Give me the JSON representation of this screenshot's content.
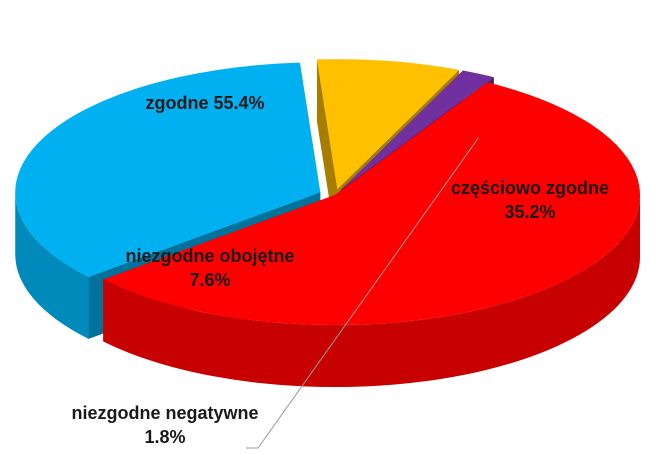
{
  "chart_data": {
    "type": "pie3d",
    "categories": [
      "zgodne",
      "częściowo zgodne",
      "niezgodne obojętne",
      "niezgodne negatywne"
    ],
    "values": [
      55.4,
      35.2,
      7.6,
      1.8
    ],
    "value_labels": [
      "55.4%",
      "35.2%",
      "7.6%",
      "1.8%"
    ],
    "colors": [
      "#ff0000",
      "#00b0f0",
      "#ffc000",
      "#7030a0"
    ]
  }
}
